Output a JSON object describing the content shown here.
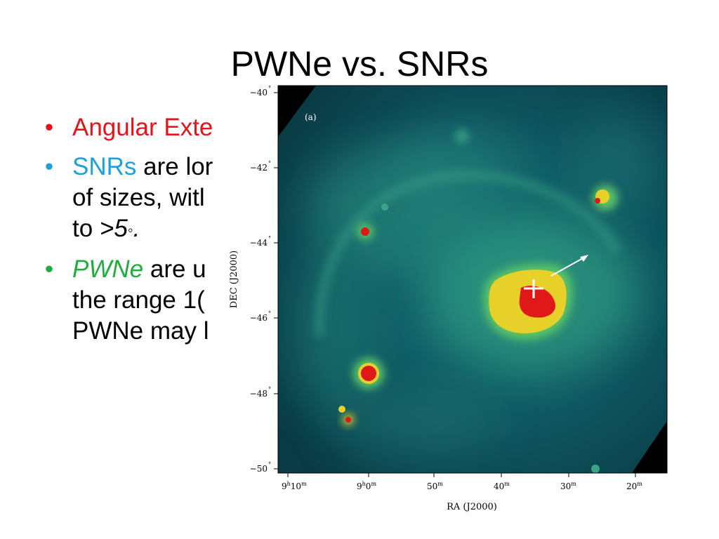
{
  "slide": {
    "title": "PWNe vs. SNRs",
    "bullets": [
      {
        "dot": "•",
        "dot_color": "#e8121a",
        "l1a": "Angular Exte",
        "l1a_color": "#e8121a"
      },
      {
        "dot": "•",
        "dot_color": "#1ea0dc",
        "l1a": "SNRs",
        "l1a_color": "#1ea0dc",
        "l1b": " are lor",
        "l2": "of sizes, witl",
        "l3a": "to ",
        "l3b": ">5",
        "l3c": "◦",
        "l3d": "."
      },
      {
        "dot": "•",
        "dot_color": "#1fae3c",
        "l1a": "PWNe",
        "l1a_color": "#1fae3c",
        "l1b": " are u",
        "l2": "the range 1(",
        "l3": "PWNe may l"
      }
    ]
  },
  "figure": {
    "panel_label": "(a)",
    "ylabel": "DEC (J2000)",
    "xlabel": "RA (J2000)",
    "yticks": [
      {
        "label": "−40",
        "unit": "°"
      },
      {
        "label": "−42",
        "unit": "°"
      },
      {
        "label": "−44",
        "unit": "°"
      },
      {
        "label": "−46",
        "unit": "°"
      },
      {
        "label": "−48",
        "unit": "°"
      },
      {
        "label": "−50",
        "unit": "°"
      }
    ],
    "xticks": [
      {
        "a": "9",
        "b": "h",
        "c": "10",
        "d": "m"
      },
      {
        "a": "9",
        "b": "h",
        "c": "0",
        "d": "m"
      },
      {
        "a": "50",
        "b": "m"
      },
      {
        "a": "40",
        "b": "m"
      },
      {
        "a": "30",
        "b": "m"
      },
      {
        "a": "20",
        "b": "m"
      }
    ],
    "colors": {
      "background": "#0d4a52",
      "bright": "#36a87e",
      "hot": "#e8d02a",
      "peak": "#e01818",
      "mask": "#000000"
    }
  }
}
